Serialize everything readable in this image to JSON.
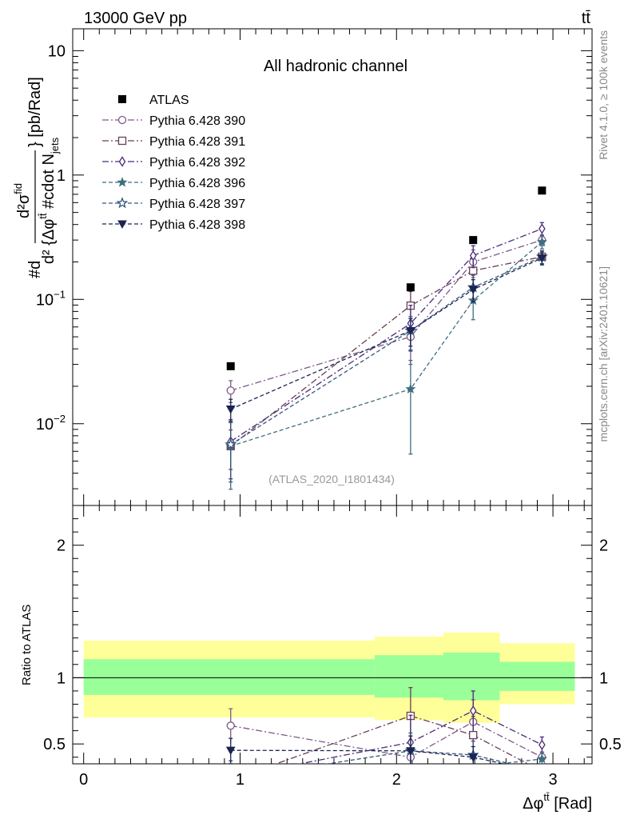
{
  "header": {
    "left": "13000 GeV pp",
    "right": "tt̄"
  },
  "side": {
    "rivet": "Rivet 4.1.0, ≥ 100k events",
    "mcplots": "mcplots.cern.ch [arXiv:2401.10621]"
  },
  "chart_data": {
    "type": "scatter",
    "title": "All hadronic channel",
    "analysis": "(ATLAS_2020_I1801434)",
    "ylabel": "#d d²σ^fid / d² {Δφ^tt̄ #cdot N_jets} [pb/Rad]",
    "ylabel_parts": {
      "top": "#d",
      "num": "d²σ",
      "num_sup": "fid",
      "den1": "d² {Δφ",
      "den_sup": "tt̄",
      "den2": " #cdot N",
      "den_sub": "jets",
      "right": "} [pb/Rad]"
    },
    "xlabel": "Δφ^tt̄ [Rad]",
    "xlabel_parts": {
      "main": "Δφ",
      "sup": "tt̄",
      "unit": " [Rad]"
    },
    "ratio_ylabel": "Ratio to ATLAS",
    "xlim": [
      -0.07,
      3.25
    ],
    "ylim": [
      0.0022,
      15
    ],
    "yscale": "log",
    "ratio_ylim": [
      0.35,
      2.3
    ],
    "x_ticks": [
      "0",
      "1",
      "2",
      "3"
    ],
    "y_ticks": [
      "10⁻²",
      "10⁻¹",
      "1",
      "10"
    ],
    "ratio_ticks": [
      "0.5",
      "1",
      "2"
    ],
    "bins": [
      [
        0,
        1.86
      ],
      [
        1.86,
        2.3
      ],
      [
        2.3,
        2.66
      ],
      [
        2.66,
        3.14
      ]
    ],
    "x": [
      0.94,
      2.09,
      2.49,
      2.93
    ],
    "atlas": {
      "name": "ATLAS",
      "values": [
        0.029,
        0.125,
        0.3,
        0.75
      ],
      "band_inner": [
        [
          0.87,
          1.14
        ],
        [
          0.85,
          1.17
        ],
        [
          0.83,
          1.19
        ],
        [
          0.9,
          1.12
        ]
      ],
      "band_outer": [
        [
          0.7,
          1.28
        ],
        [
          0.68,
          1.31
        ],
        [
          0.66,
          1.34
        ],
        [
          0.8,
          1.26
        ]
      ]
    },
    "series": [
      {
        "name": "Pythia 6.428 390",
        "color": "#7d5a85",
        "marker": "circle-open",
        "dash": "8,3,2,3",
        "values": [
          0.0185,
          0.05,
          0.2,
          0.3
        ],
        "err": [
          0.2,
          0.4,
          0.25,
          0.1
        ]
      },
      {
        "name": "Pythia 6.428 391",
        "color": "#6a3e58",
        "marker": "square-open",
        "dash": "8,3,2,3",
        "values": [
          0.0066,
          0.089,
          0.17,
          0.22
        ],
        "err": [
          0.35,
          0.3,
          0.25,
          0.12
        ]
      },
      {
        "name": "Pythia 6.428 392",
        "color": "#4a2a7a",
        "marker": "diamond-open",
        "dash": "8,3,2,3",
        "values": [
          0.0072,
          0.064,
          0.225,
          0.37
        ],
        "err": [
          0.5,
          0.4,
          0.2,
          0.12
        ]
      },
      {
        "name": "Pythia 6.428 396",
        "color": "#3f6e80",
        "marker": "star-filled",
        "dash": "5,3",
        "values": [
          0.0066,
          0.019,
          0.098,
          0.29
        ],
        "err": [
          0.55,
          0.7,
          0.3,
          0.12
        ]
      },
      {
        "name": "Pythia 6.428 397",
        "color": "#35567a",
        "marker": "star-open",
        "dash": "5,3",
        "values": [
          0.0068,
          0.056,
          0.125,
          0.22
        ],
        "err": [
          0.5,
          0.3,
          0.25,
          0.12
        ]
      },
      {
        "name": "Pythia 6.428 398",
        "color": "#1c2452",
        "marker": "triangle-down-filled",
        "dash": "5,3",
        "values": [
          0.0131,
          0.056,
          0.12,
          0.215
        ],
        "err": [
          0.2,
          0.25,
          0.2,
          0.12
        ]
      }
    ]
  }
}
